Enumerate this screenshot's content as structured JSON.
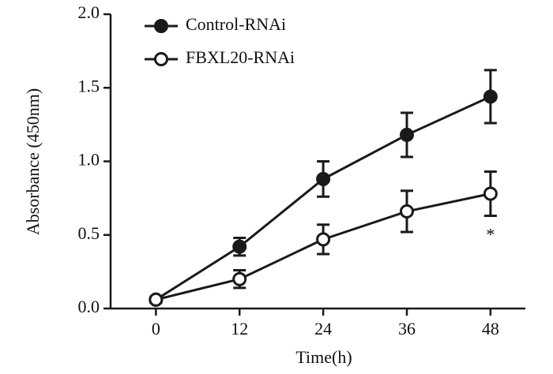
{
  "chart_data": {
    "type": "line",
    "x_label": "Time(h)",
    "y_label": "Absorbance (450nm)",
    "x": [
      0,
      12,
      24,
      36,
      48
    ],
    "series": [
      {
        "name": "Control-RNAi",
        "color": "#1a1a1a",
        "marker": "filled",
        "values": [
          0.06,
          0.42,
          0.88,
          1.18,
          1.44
        ],
        "errors": [
          0.02,
          0.06,
          0.12,
          0.15,
          0.18
        ]
      },
      {
        "name": "FBXL20-RNAi",
        "color": "#1a1a1a",
        "marker": "open",
        "values": [
          0.06,
          0.2,
          0.47,
          0.66,
          0.78
        ],
        "errors": [
          0.02,
          0.06,
          0.1,
          0.14,
          0.15
        ]
      }
    ],
    "annotation": "*",
    "xlim": [
      -6.5,
      53
    ],
    "xticks": [
      0,
      12,
      24,
      36,
      48
    ],
    "ylim": [
      0,
      2
    ],
    "yticks": [
      {
        "value": 0,
        "label": "0.0"
      },
      {
        "value": 0.5,
        "label": "0.5"
      },
      {
        "value": 1,
        "label": "1.0"
      },
      {
        "value": 1.5,
        "label": "1.5"
      },
      {
        "value": 2,
        "label": "2.0"
      }
    ],
    "legend": "top-left"
  }
}
